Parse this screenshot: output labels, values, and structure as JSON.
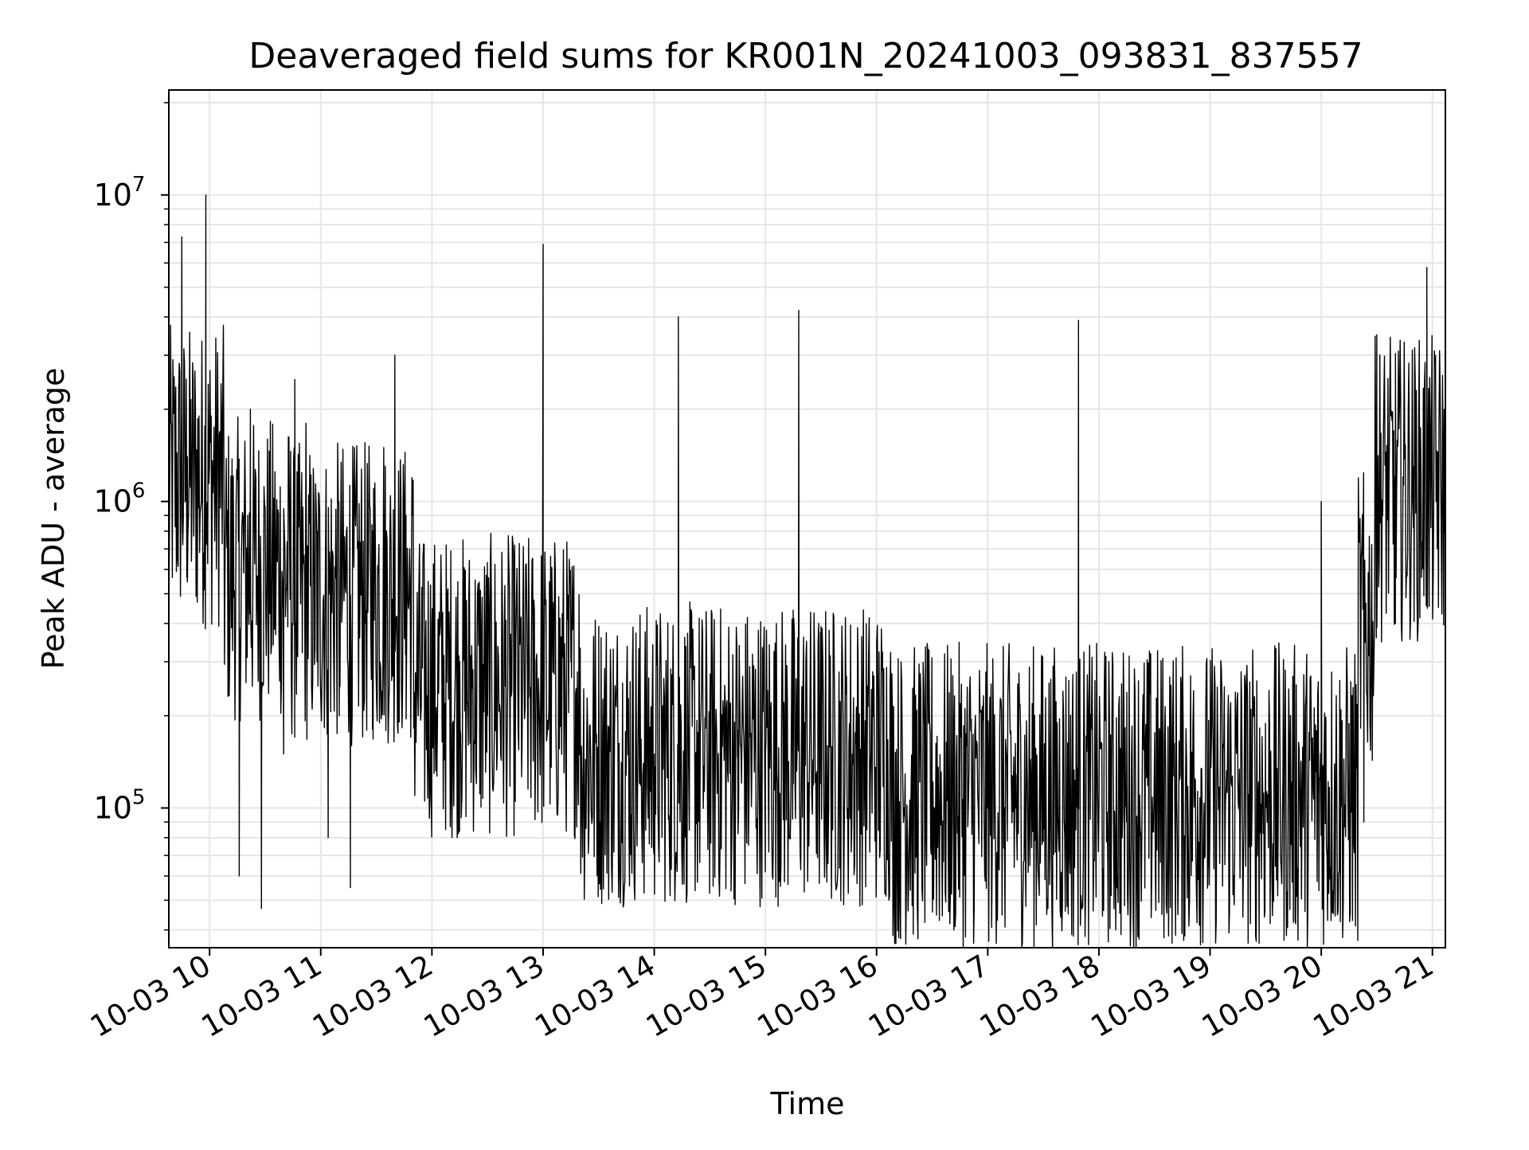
{
  "chart_data": {
    "type": "line",
    "title": "Deaveraged field sums for KR001N_20241003_093831_837557",
    "xlabel": "Time",
    "ylabel": "Peak ADU - average",
    "yscale": "log",
    "ylim": [
      35000,
      22000000
    ],
    "xlim": [
      "2024-10-03 09:38",
      "2024-10-03 21:07"
    ],
    "grid": true,
    "legend": "none",
    "line_color": "#000000",
    "x_ticks": [
      "10-03 10",
      "10-03 11",
      "10-03 12",
      "10-03 13",
      "10-03 14",
      "10-03 15",
      "10-03 16",
      "10-03 17",
      "10-03 18",
      "10-03 19",
      "10-03 20",
      "10-03 21"
    ],
    "y_ticks": [
      {
        "base": "10",
        "exp": "5",
        "value": 100000
      },
      {
        "base": "10",
        "exp": "6",
        "value": 1000000
      },
      {
        "base": "10",
        "exp": "7",
        "value": 10000000
      }
    ],
    "series": [
      {
        "x": [
          "2024-10-03 09:38",
          "2024-10-03 09:45",
          "2024-10-03 09:48",
          "2024-10-03 09:52",
          "2024-10-03 09:58",
          "2024-10-03 10:04",
          "2024-10-03 10:10",
          "2024-10-03 10:16",
          "2024-10-03 10:22",
          "2024-10-03 10:28",
          "2024-10-03 10:34",
          "2024-10-03 10:40",
          "2024-10-03 10:46",
          "2024-10-03 10:52",
          "2024-10-03 10:58",
          "2024-10-03 11:04",
          "2024-10-03 11:10",
          "2024-10-03 11:16",
          "2024-10-03 11:22",
          "2024-10-03 11:28",
          "2024-10-03 11:34",
          "2024-10-03 11:40",
          "2024-10-03 11:46",
          "2024-10-03 12:00",
          "2024-10-03 12:15",
          "2024-10-03 12:30",
          "2024-10-03 12:40",
          "2024-10-03 12:45",
          "2024-10-03 13:00",
          "2024-10-03 13:15",
          "2024-10-03 13:30",
          "2024-10-03 13:38",
          "2024-10-03 13:45",
          "2024-10-03 14:00",
          "2024-10-03 14:13",
          "2024-10-03 14:30",
          "2024-10-03 14:45",
          "2024-10-03 15:00",
          "2024-10-03 15:15",
          "2024-10-03 15:18",
          "2024-10-03 15:30",
          "2024-10-03 15:45",
          "2024-10-03 16:00",
          "2024-10-03 16:15",
          "2024-10-03 16:30",
          "2024-10-03 16:45",
          "2024-10-03 17:00",
          "2024-10-03 17:15",
          "2024-10-03 17:30",
          "2024-10-03 17:49",
          "2024-10-03 18:00",
          "2024-10-03 18:15",
          "2024-10-03 18:34",
          "2024-10-03 18:45",
          "2024-10-03 19:00",
          "2024-10-03 19:15",
          "2024-10-03 19:30",
          "2024-10-03 19:45",
          "2024-10-03 20:00",
          "2024-10-03 20:15",
          "2024-10-03 20:23",
          "2024-10-03 20:30",
          "2024-10-03 20:40",
          "2024-10-03 20:50",
          "2024-10-03 20:57",
          "2024-10-03 21:02",
          "2024-10-03 21:07"
        ],
        "y": [
          400000,
          7300000,
          1400000,
          2000000,
          10000000,
          1500000,
          300000,
          60000,
          2000000,
          47000,
          1000000,
          150000,
          2500000,
          1800000,
          300000,
          80000,
          200000,
          55000,
          1200000,
          800000,
          1500000,
          3000000,
          900000,
          400000,
          300000,
          200000,
          180000,
          150000,
          6900000,
          300000,
          250000,
          200000,
          180000,
          150000,
          4000000,
          200000,
          180000,
          150000,
          120000,
          4200000,
          120000,
          100000,
          80000,
          100000,
          110000,
          120000,
          100000,
          100000,
          130000,
          3900000,
          100000,
          90000,
          45000,
          100000,
          95000,
          120000,
          100000,
          110000,
          1000000,
          120000,
          90000,
          3500000,
          400000,
          1300000,
          5800000,
          1000000,
          900000
        ]
      }
    ]
  }
}
